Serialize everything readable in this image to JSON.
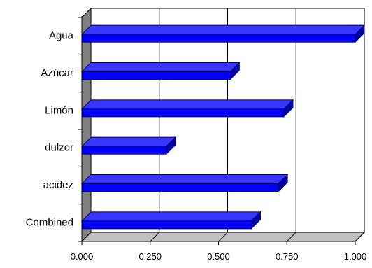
{
  "chart_data": {
    "type": "bar",
    "orientation": "horizontal",
    "style": "3d",
    "categories": [
      "Agua",
      "Azúcar",
      "Limón",
      "dulzor",
      "acidez",
      "Combined"
    ],
    "values": [
      1.0,
      0.543,
      0.739,
      0.309,
      0.719,
      0.62
    ],
    "tick_labels": [
      "0.000",
      "0.250",
      "0.500",
      "0.750",
      "1.000"
    ],
    "tick_values": [
      0,
      0.25,
      0.5,
      0.75,
      1.0
    ],
    "xlim": [
      0,
      1.0
    ],
    "grid": true,
    "legend": "none",
    "title": "",
    "xlabel": "",
    "ylabel": "",
    "colors": {
      "bar_front": "#0000ff",
      "bar_top": "#3636ff",
      "bar_side": "#0000a8",
      "bar_outline": "#000066",
      "back_wall": "#ffffff",
      "side_wall": "#808080",
      "floor": "#c0c0c0",
      "grid": "#000000"
    }
  }
}
